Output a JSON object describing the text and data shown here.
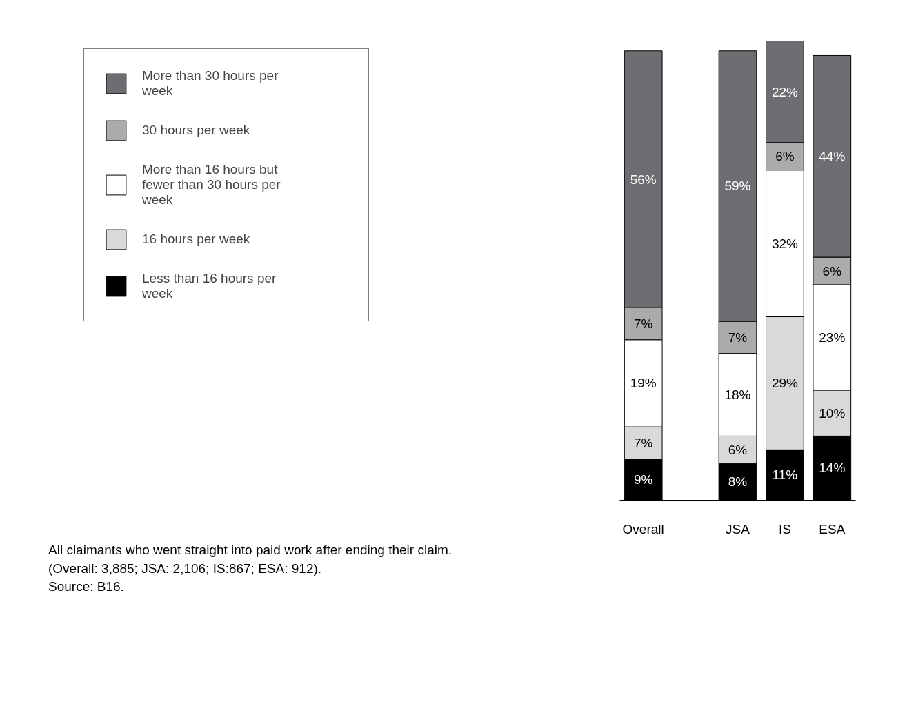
{
  "chart_data": {
    "type": "bar",
    "stacked": true,
    "legend": "left",
    "grid": false,
    "categories": [
      "Overall",
      null,
      "JSA",
      "IS",
      "ESA"
    ],
    "series": [
      {
        "name": "Less than 16 hours per week",
        "color": "#000000",
        "values": [
          9,
          null,
          8,
          11,
          14
        ],
        "value_labels": [
          "9%",
          null,
          "8%",
          "11%",
          "14%"
        ]
      },
      {
        "name": "16 hours per week",
        "color": "#d9d9d9",
        "values": [
          7,
          null,
          6,
          29,
          10
        ],
        "value_labels": [
          "7%",
          null,
          "6%",
          "29%",
          "10%"
        ]
      },
      {
        "name": "More than 16 hours but fewer than 30 hours per week",
        "color": "#ffffff",
        "values": [
          19,
          null,
          18,
          32,
          23
        ],
        "value_labels": [
          "19%",
          null,
          "18%",
          "32%",
          "23%"
        ]
      },
      {
        "name": "30 hours per week",
        "color": "#ababab",
        "values": [
          7,
          null,
          7,
          6,
          6
        ],
        "value_labels": [
          "7%",
          null,
          "7%",
          "6%",
          "6%"
        ]
      },
      {
        "name": "More than 30 hours per week",
        "color": "#6d6e71",
        "values": [
          56,
          null,
          59,
          22,
          44
        ],
        "value_labels": [
          "56%",
          null,
          "59%",
          "22%",
          "44%"
        ]
      }
    ],
    "annotations": [
      "All claimants who went straight into paid work after ending their claim.",
      "(Overall: 3,885; JSA: 2,106; IS:867; ESA: 912).",
      "Source: B16."
    ]
  }
}
